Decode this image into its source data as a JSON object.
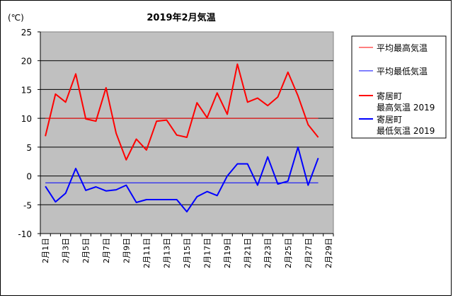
{
  "chart_data": {
    "type": "line",
    "title": "2019年2月気温",
    "unit_label": "(℃)",
    "ylim": [
      -10,
      25
    ],
    "yticks": [
      -10,
      -5,
      0,
      5,
      10,
      15,
      20,
      25
    ],
    "x_tick_labels": [
      "2月1日",
      "2月3日",
      "2月5日",
      "2月7日",
      "2月9日",
      "2月11日",
      "2月13日",
      "2月15日",
      "2月17日",
      "2月19日",
      "2月21日",
      "2月23日",
      "2月25日",
      "2月27日",
      "2月29日"
    ],
    "grid": true,
    "plot_background": "#c0c0c0",
    "legend_position": "right",
    "days": [
      1,
      2,
      3,
      4,
      5,
      6,
      7,
      8,
      9,
      10,
      11,
      12,
      13,
      14,
      15,
      16,
      17,
      18,
      19,
      20,
      21,
      22,
      23,
      24,
      25,
      26,
      27,
      28
    ],
    "series": [
      {
        "name": "平均最高気温",
        "color": "#ff0000",
        "thin": true,
        "values": [
          10,
          10,
          10,
          10,
          10,
          10,
          10,
          10,
          10,
          10,
          10,
          10,
          10,
          10,
          10,
          10,
          10,
          10,
          10,
          10,
          10,
          10,
          10,
          10,
          10,
          10,
          10,
          10
        ]
      },
      {
        "name": "平均最低気温",
        "color": "#0000ff",
        "thin": true,
        "values": [
          -1.2,
          -1.2,
          -1.2,
          -1.2,
          -1.2,
          -1.2,
          -1.2,
          -1.2,
          -1.2,
          -1.2,
          -1.2,
          -1.2,
          -1.2,
          -1.2,
          -1.2,
          -1.2,
          -1.2,
          -1.2,
          -1.2,
          -1.2,
          -1.2,
          -1.2,
          -1.2,
          -1.2,
          -1.2,
          -1.2,
          -1.2,
          -1.2
        ]
      },
      {
        "name": "寄居町 最高気温 2019",
        "legend_lines": [
          "寄居町",
          "最高気温 2019"
        ],
        "color": "#ff0000",
        "thin": false,
        "values": [
          6.9,
          14.2,
          12.8,
          17.7,
          9.9,
          9.5,
          15.3,
          7.4,
          2.8,
          6.4,
          4.5,
          9.5,
          9.7,
          7.1,
          6.7,
          12.7,
          10.1,
          14.4,
          10.7,
          19.4,
          12.8,
          13.5,
          12.2,
          13.7,
          18.0,
          13.9,
          8.9,
          6.7
        ]
      },
      {
        "name": "寄居町 最低気温 2019",
        "legend_lines": [
          "寄居町",
          "最低気温 2019"
        ],
        "color": "#0000ff",
        "thin": false,
        "values": [
          -1.8,
          -4.5,
          -3.0,
          1.3,
          -2.5,
          -1.9,
          -2.6,
          -2.4,
          -1.6,
          -4.6,
          -4.1,
          -4.1,
          -4.1,
          -4.1,
          -6.2,
          -3.6,
          -2.7,
          -3.4,
          0.0,
          2.1,
          2.1,
          -1.6,
          3.3,
          -1.4,
          -0.9,
          5.0,
          -1.6,
          3.1
        ]
      }
    ]
  }
}
